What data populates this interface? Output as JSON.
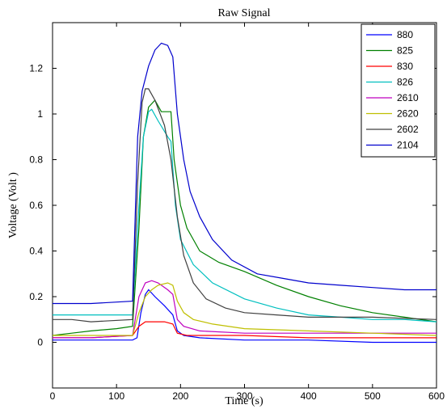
{
  "chart_data": {
    "type": "line",
    "title": "Raw Signal",
    "xlabel": "Time (s)",
    "ylabel": "Voltage (Volt )",
    "xlim": [
      0,
      600
    ],
    "ylim": [
      -0.2,
      1.4
    ],
    "x_ticks": [
      0,
      100,
      200,
      300,
      400,
      500,
      600
    ],
    "y_ticks": [
      0,
      0.2,
      0.4,
      0.6,
      0.8,
      1,
      1.2
    ],
    "y_tick_labels": [
      "0",
      "0.2",
      "0.4",
      "0.6",
      "0.8",
      "1",
      "1.2"
    ],
    "grid": false,
    "legend_position": "top-right",
    "series": [
      {
        "name": "880",
        "color": "#0000ff",
        "points": [
          [
            0,
            0.01
          ],
          [
            60,
            0.01
          ],
          [
            125,
            0.01
          ],
          [
            132,
            0.02
          ],
          [
            138,
            0.13
          ],
          [
            145,
            0.21
          ],
          [
            150,
            0.23
          ],
          [
            160,
            0.2
          ],
          [
            175,
            0.16
          ],
          [
            188,
            0.12
          ],
          [
            195,
            0.05
          ],
          [
            205,
            0.03
          ],
          [
            230,
            0.02
          ],
          [
            300,
            0.01
          ],
          [
            400,
            0.01
          ],
          [
            500,
            0.0
          ],
          [
            600,
            0.0
          ]
        ]
      },
      {
        "name": "825",
        "color": "#008000",
        "points": [
          [
            0,
            0.03
          ],
          [
            30,
            0.04
          ],
          [
            60,
            0.05
          ],
          [
            100,
            0.06
          ],
          [
            125,
            0.07
          ],
          [
            135,
            0.5
          ],
          [
            142,
            0.9
          ],
          [
            150,
            1.03
          ],
          [
            160,
            1.06
          ],
          [
            170,
            1.01
          ],
          [
            185,
            1.01
          ],
          [
            190,
            0.8
          ],
          [
            200,
            0.6
          ],
          [
            210,
            0.5
          ],
          [
            230,
            0.4
          ],
          [
            260,
            0.35
          ],
          [
            300,
            0.31
          ],
          [
            350,
            0.25
          ],
          [
            400,
            0.2
          ],
          [
            450,
            0.16
          ],
          [
            500,
            0.13
          ],
          [
            550,
            0.11
          ],
          [
            600,
            0.09
          ]
        ]
      },
      {
        "name": "830",
        "color": "#ff0000",
        "points": [
          [
            0,
            0.02
          ],
          [
            60,
            0.02
          ],
          [
            125,
            0.03
          ],
          [
            135,
            0.07
          ],
          [
            145,
            0.09
          ],
          [
            160,
            0.09
          ],
          [
            175,
            0.09
          ],
          [
            188,
            0.08
          ],
          [
            195,
            0.04
          ],
          [
            210,
            0.03
          ],
          [
            250,
            0.03
          ],
          [
            300,
            0.03
          ],
          [
            400,
            0.02
          ],
          [
            500,
            0.02
          ],
          [
            600,
            0.02
          ]
        ]
      },
      {
        "name": "826",
        "color": "#00bfbf",
        "points": [
          [
            0,
            0.12
          ],
          [
            60,
            0.12
          ],
          [
            125,
            0.12
          ],
          [
            135,
            0.6
          ],
          [
            142,
            0.9
          ],
          [
            150,
            1.01
          ],
          [
            155,
            1.02
          ],
          [
            165,
            0.97
          ],
          [
            180,
            0.9
          ],
          [
            185,
            0.88
          ],
          [
            192,
            0.6
          ],
          [
            200,
            0.45
          ],
          [
            220,
            0.34
          ],
          [
            250,
            0.26
          ],
          [
            300,
            0.19
          ],
          [
            350,
            0.15
          ],
          [
            400,
            0.12
          ],
          [
            450,
            0.11
          ],
          [
            500,
            0.1
          ],
          [
            550,
            0.1
          ],
          [
            600,
            0.09
          ]
        ]
      },
      {
        "name": "2610",
        "color": "#bf00bf",
        "points": [
          [
            0,
            0.02
          ],
          [
            60,
            0.02
          ],
          [
            125,
            0.03
          ],
          [
            135,
            0.2
          ],
          [
            145,
            0.26
          ],
          [
            155,
            0.27
          ],
          [
            165,
            0.26
          ],
          [
            180,
            0.23
          ],
          [
            188,
            0.21
          ],
          [
            195,
            0.1
          ],
          [
            205,
            0.07
          ],
          [
            230,
            0.05
          ],
          [
            300,
            0.04
          ],
          [
            400,
            0.04
          ],
          [
            500,
            0.04
          ],
          [
            600,
            0.04
          ]
        ]
      },
      {
        "name": "2620",
        "color": "#bfbf00",
        "points": [
          [
            0,
            0.03
          ],
          [
            60,
            0.03
          ],
          [
            125,
            0.03
          ],
          [
            135,
            0.13
          ],
          [
            145,
            0.2
          ],
          [
            155,
            0.23
          ],
          [
            165,
            0.25
          ],
          [
            180,
            0.26
          ],
          [
            188,
            0.25
          ],
          [
            195,
            0.18
          ],
          [
            205,
            0.13
          ],
          [
            220,
            0.1
          ],
          [
            250,
            0.08
          ],
          [
            300,
            0.06
          ],
          [
            400,
            0.05
          ],
          [
            500,
            0.04
          ],
          [
            600,
            0.03
          ]
        ]
      },
      {
        "name": "2602",
        "color": "#404040",
        "points": [
          [
            0,
            0.1
          ],
          [
            30,
            0.1
          ],
          [
            60,
            0.09
          ],
          [
            125,
            0.1
          ],
          [
            133,
            0.7
          ],
          [
            140,
            1.05
          ],
          [
            145,
            1.11
          ],
          [
            150,
            1.11
          ],
          [
            160,
            1.06
          ],
          [
            175,
            0.95
          ],
          [
            185,
            0.8
          ],
          [
            195,
            0.55
          ],
          [
            205,
            0.38
          ],
          [
            220,
            0.26
          ],
          [
            240,
            0.19
          ],
          [
            270,
            0.15
          ],
          [
            300,
            0.13
          ],
          [
            350,
            0.12
          ],
          [
            400,
            0.11
          ],
          [
            500,
            0.11
          ],
          [
            600,
            0.1
          ]
        ]
      },
      {
        "name": "2104",
        "color": "#0000cd",
        "points": [
          [
            0,
            0.17
          ],
          [
            60,
            0.17
          ],
          [
            125,
            0.18
          ],
          [
            133,
            0.9
          ],
          [
            140,
            1.1
          ],
          [
            150,
            1.21
          ],
          [
            160,
            1.28
          ],
          [
            170,
            1.31
          ],
          [
            180,
            1.3
          ],
          [
            188,
            1.25
          ],
          [
            195,
            1.0
          ],
          [
            205,
            0.8
          ],
          [
            215,
            0.66
          ],
          [
            230,
            0.55
          ],
          [
            250,
            0.45
          ],
          [
            280,
            0.36
          ],
          [
            320,
            0.3
          ],
          [
            360,
            0.28
          ],
          [
            400,
            0.26
          ],
          [
            450,
            0.25
          ],
          [
            500,
            0.24
          ],
          [
            550,
            0.23
          ],
          [
            600,
            0.23
          ]
        ]
      }
    ]
  }
}
